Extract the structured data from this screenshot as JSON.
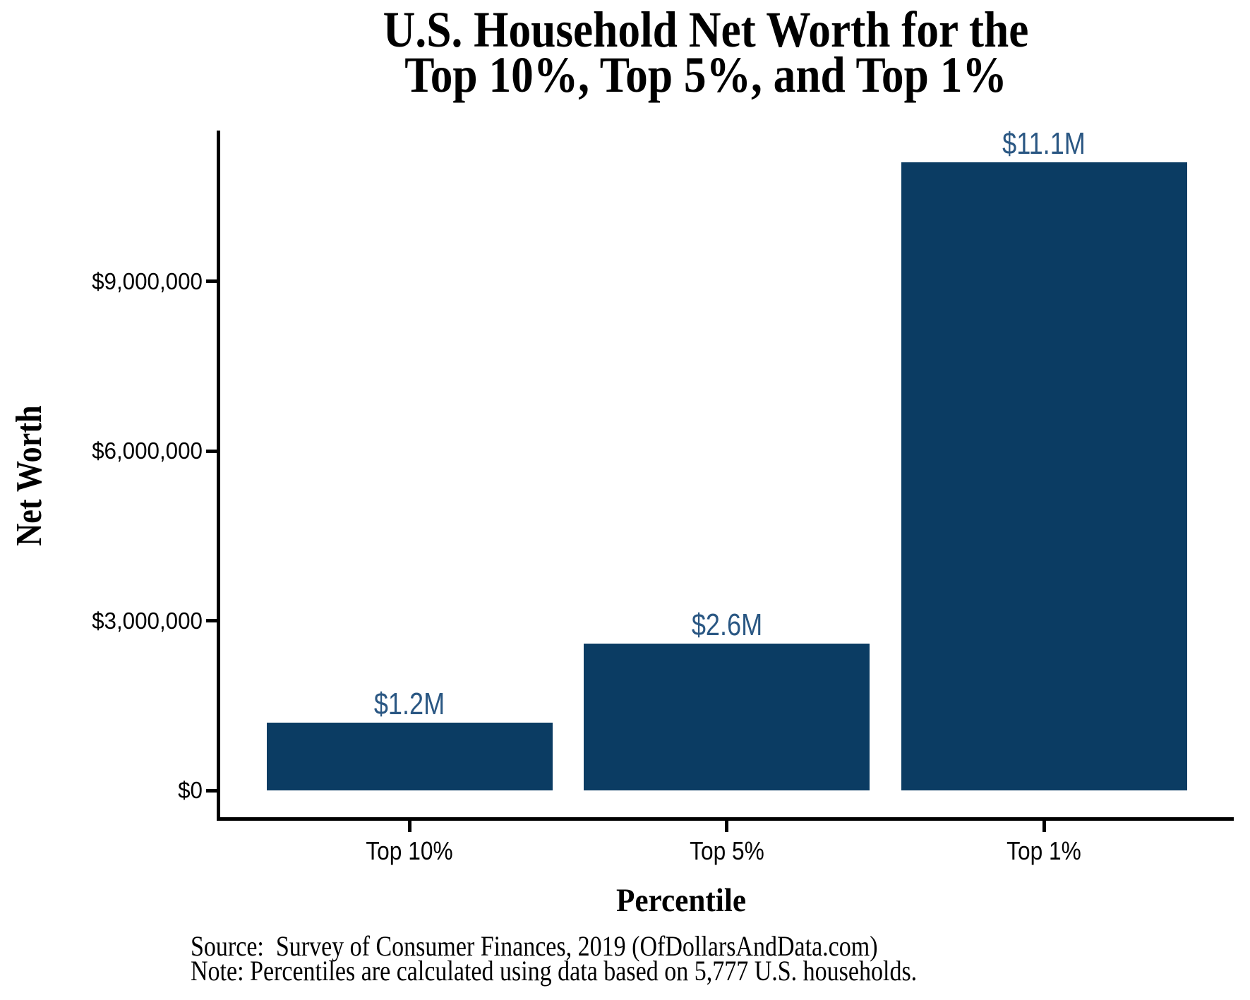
{
  "header": {
    "title_line1": "U.S. Household Net Worth for the",
    "title_line2": "Top 10%, Top 5%, and Top 1%"
  },
  "chart_data": {
    "type": "bar",
    "title": "U.S. Household Net Worth for the Top 10%, Top 5%, and Top 1%",
    "categories": [
      "Top 10%",
      "Top 5%",
      "Top 1%"
    ],
    "values": [
      1200000,
      2600000,
      11100000
    ],
    "bar_labels": [
      "$1.2M",
      "$2.6M",
      "$11.1M"
    ],
    "xlabel": "Percentile",
    "ylabel": "Net Worth",
    "ylim": [
      0,
      11700000
    ],
    "yticks": [
      0,
      3000000,
      6000000,
      9000000
    ],
    "ytick_labels": [
      "$0",
      "$3,000,000",
      "$6,000,000",
      "$9,000,000"
    ],
    "grid": "off",
    "legend": "none",
    "bar_color": "#0B3C63",
    "value_label_color": "#2A5783",
    "axis_color": "#000000"
  },
  "footer": {
    "source_line": "Source:  Survey of Consumer Finances, 2019 (OfDollarsAndData.com)",
    "note_line": "Note: Percentiles are calculated using data based on 5,777 U.S. households."
  }
}
